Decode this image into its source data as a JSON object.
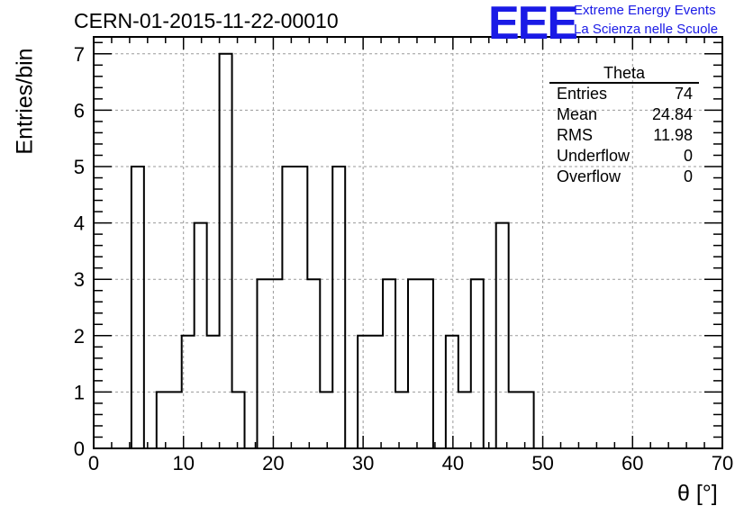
{
  "header": {
    "run_id": "CERN-01-2015-11-22-00010"
  },
  "logo": {
    "mark": "EEE",
    "line1": "Extreme Energy Events",
    "line2": "La Scienza nelle Scuole"
  },
  "stats_box": {
    "name": "Theta",
    "rows": [
      {
        "label": "Entries",
        "value": "74"
      },
      {
        "label": "Mean",
        "value": "24.84"
      },
      {
        "label": "RMS",
        "value": "11.98"
      },
      {
        "label": "Underflow",
        "value": "0"
      },
      {
        "label": "Overflow",
        "value": "0"
      }
    ]
  },
  "colors": {
    "logo": "#1a1ae6",
    "line": "#000000",
    "grid": "#9a9a9a"
  },
  "chart_data": {
    "type": "bar",
    "style": "step-histogram",
    "title": "CERN-01-2015-11-22-00010",
    "xlabel": "θ [°]",
    "ylabel": "Entries/bin",
    "xlim": [
      0,
      70
    ],
    "ylim": [
      0,
      7.3
    ],
    "grid": true,
    "legend": "top-right stats box",
    "bin_width": 1.4,
    "x_ticks": [
      "0",
      "10",
      "20",
      "30",
      "40",
      "50",
      "60",
      "70"
    ],
    "y_ticks": [
      "0",
      "1",
      "2",
      "3",
      "4",
      "5",
      "6",
      "7"
    ],
    "x_tick_values": [
      0,
      10,
      20,
      30,
      40,
      50,
      60,
      70
    ],
    "y_tick_values": [
      0,
      1,
      2,
      3,
      4,
      5,
      6,
      7
    ],
    "bins": [
      {
        "x": 4.2,
        "count": 5
      },
      {
        "x": 5.6,
        "count": 0
      },
      {
        "x": 7.0,
        "count": 1
      },
      {
        "x": 8.4,
        "count": 1
      },
      {
        "x": 9.8,
        "count": 2
      },
      {
        "x": 11.2,
        "count": 4
      },
      {
        "x": 12.6,
        "count": 2
      },
      {
        "x": 14.0,
        "count": 7
      },
      {
        "x": 15.4,
        "count": 1
      },
      {
        "x": 16.8,
        "count": 0
      },
      {
        "x": 18.2,
        "count": 3
      },
      {
        "x": 19.6,
        "count": 3
      },
      {
        "x": 21.0,
        "count": 5
      },
      {
        "x": 22.4,
        "count": 5
      },
      {
        "x": 23.8,
        "count": 3
      },
      {
        "x": 25.2,
        "count": 1
      },
      {
        "x": 26.6,
        "count": 5
      },
      {
        "x": 28.0,
        "count": 0
      },
      {
        "x": 29.4,
        "count": 2
      },
      {
        "x": 30.8,
        "count": 2
      },
      {
        "x": 32.2,
        "count": 3
      },
      {
        "x": 33.6,
        "count": 1
      },
      {
        "x": 35.0,
        "count": 3
      },
      {
        "x": 36.4,
        "count": 3
      },
      {
        "x": 37.8,
        "count": 0
      },
      {
        "x": 39.2,
        "count": 2
      },
      {
        "x": 40.6,
        "count": 1
      },
      {
        "x": 42.0,
        "count": 3
      },
      {
        "x": 43.4,
        "count": 0
      },
      {
        "x": 44.8,
        "count": 4
      },
      {
        "x": 46.2,
        "count": 1
      },
      {
        "x": 47.6,
        "count": 1
      }
    ]
  }
}
